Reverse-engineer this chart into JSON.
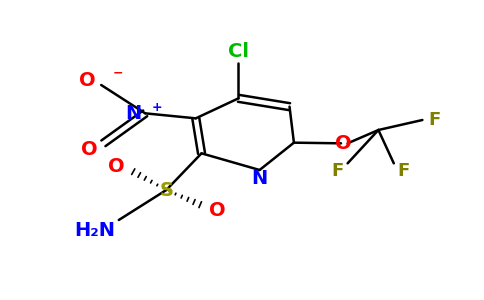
{
  "bg_color": "#ffffff",
  "figsize": [
    4.84,
    3.0
  ],
  "dpi": 100,
  "colors": {
    "bond": "#000000",
    "N": "#0000ff",
    "O": "#ff0000",
    "S": "#999900",
    "Cl": "#00bb00",
    "F": "#808000",
    "C": "#000000"
  }
}
